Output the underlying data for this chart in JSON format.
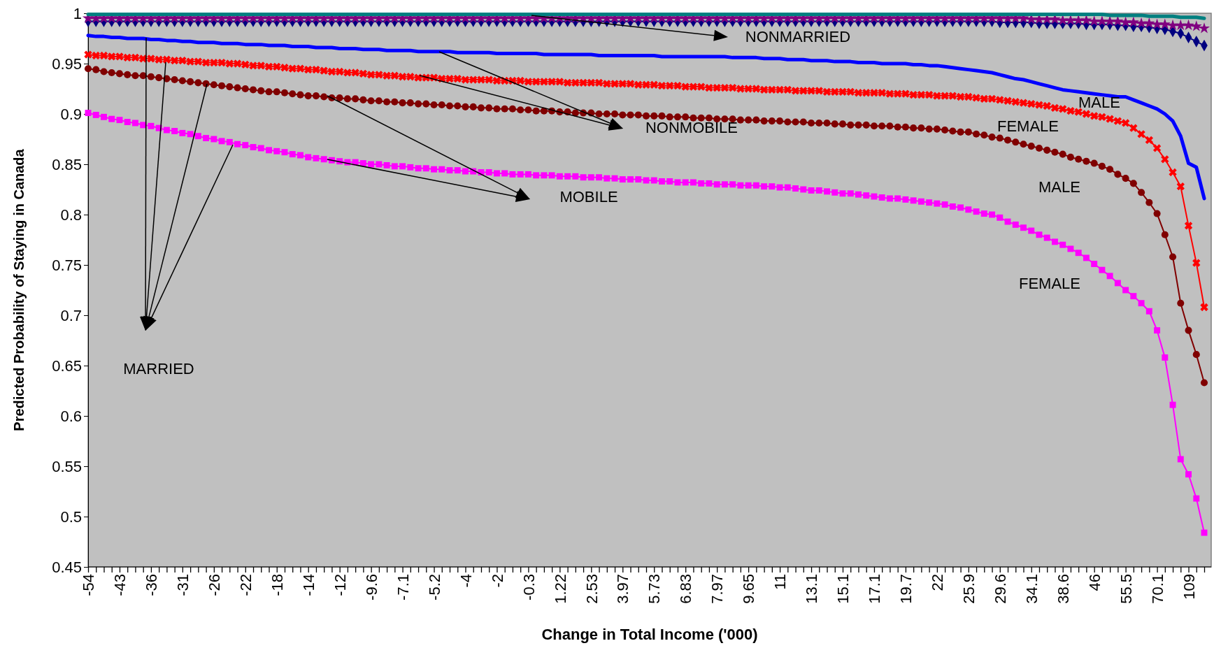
{
  "chart_data": {
    "type": "line",
    "xlabel": "Change in Total Income ('000)",
    "ylabel": "Predicted Probability of Staying in Canada",
    "categories": [
      "-54",
      null,
      null,
      null,
      "-43",
      null,
      null,
      null,
      "-36",
      null,
      null,
      null,
      "-31",
      null,
      null,
      null,
      "-26",
      null,
      null,
      null,
      "-22",
      null,
      null,
      null,
      "-18",
      null,
      null,
      null,
      "-14",
      null,
      null,
      null,
      "-12",
      null,
      null,
      null,
      "-9.6",
      null,
      null,
      null,
      "-7.1",
      null,
      null,
      null,
      "-5.2",
      null,
      null,
      null,
      "-4",
      null,
      null,
      null,
      "-2",
      null,
      null,
      null,
      "-0.3",
      null,
      null,
      null,
      "1.22",
      null,
      null,
      null,
      "2.53",
      null,
      null,
      null,
      "3.97",
      null,
      null,
      null,
      "5.73",
      null,
      null,
      null,
      "6.83",
      null,
      null,
      null,
      "7.97",
      null,
      null,
      null,
      "9.65",
      null,
      null,
      null,
      "11",
      null,
      null,
      null,
      "13.1",
      null,
      null,
      null,
      "15.1",
      null,
      null,
      null,
      "17.1",
      null,
      null,
      null,
      "19.7",
      null,
      null,
      null,
      "22",
      null,
      null,
      null,
      "25.9",
      null,
      null,
      null,
      "29.6",
      null,
      null,
      null,
      "34.1",
      null,
      null,
      null,
      "38.6",
      null,
      null,
      null,
      "46",
      null,
      null,
      null,
      "55.5",
      null,
      null,
      null,
      "70.1",
      null,
      null,
      null,
      "109",
      null,
      null
    ],
    "ylim": [
      0.45,
      1
    ],
    "yticks": [
      0.45,
      0.5,
      0.55,
      0.6,
      0.65,
      0.7,
      0.75,
      0.8,
      0.85,
      0.9,
      0.95,
      1
    ],
    "grid": false,
    "line_style": "solid",
    "series": [
      {
        "color": "#ff00ff",
        "marker": "square",
        "values": [
          0.901,
          0.899,
          0.897,
          0.895,
          0.894,
          0.892,
          0.891,
          0.889,
          0.888,
          0.886,
          0.884,
          0.883,
          0.881,
          0.88,
          0.878,
          0.876,
          0.875,
          0.873,
          0.872,
          0.87,
          0.869,
          0.867,
          0.866,
          0.864,
          0.863,
          0.862,
          0.86,
          0.859,
          0.857,
          0.856,
          0.855,
          0.854,
          0.853,
          0.852,
          0.852,
          0.851,
          0.85,
          0.85,
          0.849,
          0.848,
          0.848,
          0.847,
          0.846,
          0.846,
          0.845,
          0.845,
          0.844,
          0.844,
          0.843,
          0.843,
          0.842,
          0.842,
          0.841,
          0.841,
          0.84,
          0.84,
          0.84,
          0.839,
          0.839,
          0.839,
          0.838,
          0.838,
          0.838,
          0.837,
          0.837,
          0.837,
          0.836,
          0.836,
          0.835,
          0.835,
          0.835,
          0.834,
          0.834,
          0.833,
          0.833,
          0.832,
          0.832,
          0.832,
          0.831,
          0.831,
          0.83,
          0.83,
          0.83,
          0.829,
          0.829,
          0.829,
          0.828,
          0.828,
          0.827,
          0.827,
          0.826,
          0.825,
          0.824,
          0.824,
          0.823,
          0.822,
          0.821,
          0.821,
          0.82,
          0.819,
          0.818,
          0.817,
          0.816,
          0.816,
          0.815,
          0.814,
          0.813,
          0.812,
          0.811,
          0.81,
          0.808,
          0.807,
          0.805,
          0.803,
          0.801,
          0.8,
          0.797,
          0.793,
          0.79,
          0.787,
          0.784,
          0.78,
          0.777,
          0.773,
          0.77,
          0.766,
          0.762,
          0.757,
          0.751,
          0.745,
          0.739,
          0.732,
          0.725,
          0.719,
          0.712,
          0.704,
          0.685,
          0.658,
          0.611,
          0.557,
          0.542,
          0.518,
          0.484
        ]
      },
      {
        "color": "#800000",
        "marker": "circle",
        "values": [
          0.945,
          0.944,
          0.942,
          0.941,
          0.94,
          0.939,
          0.938,
          0.938,
          0.937,
          0.936,
          0.935,
          0.934,
          0.933,
          0.932,
          0.931,
          0.93,
          0.929,
          0.928,
          0.927,
          0.926,
          0.925,
          0.924,
          0.923,
          0.922,
          0.922,
          0.921,
          0.92,
          0.919,
          0.918,
          0.918,
          0.917,
          0.916,
          0.916,
          0.915,
          0.915,
          0.914,
          0.913,
          0.913,
          0.912,
          0.912,
          0.911,
          0.911,
          0.91,
          0.91,
          0.909,
          0.909,
          0.908,
          0.908,
          0.907,
          0.907,
          0.906,
          0.906,
          0.905,
          0.905,
          0.905,
          0.904,
          0.904,
          0.903,
          0.903,
          0.903,
          0.902,
          0.902,
          0.901,
          0.901,
          0.901,
          0.9,
          0.9,
          0.9,
          0.899,
          0.899,
          0.899,
          0.898,
          0.898,
          0.898,
          0.897,
          0.897,
          0.897,
          0.896,
          0.896,
          0.896,
          0.895,
          0.895,
          0.895,
          0.894,
          0.894,
          0.894,
          0.893,
          0.893,
          0.893,
          0.892,
          0.892,
          0.892,
          0.891,
          0.891,
          0.891,
          0.89,
          0.89,
          0.889,
          0.889,
          0.889,
          0.888,
          0.888,
          0.888,
          0.887,
          0.887,
          0.886,
          0.886,
          0.885,
          0.885,
          0.884,
          0.883,
          0.882,
          0.882,
          0.88,
          0.879,
          0.877,
          0.876,
          0.874,
          0.872,
          0.87,
          0.868,
          0.866,
          0.864,
          0.862,
          0.86,
          0.857,
          0.855,
          0.853,
          0.851,
          0.848,
          0.845,
          0.84,
          0.836,
          0.831,
          0.822,
          0.812,
          0.801,
          0.78,
          0.758,
          0.712,
          0.685,
          0.661,
          0.633
        ]
      },
      {
        "color": "#ff0000",
        "marker": "cross",
        "values": [
          0.959,
          0.958,
          0.958,
          0.957,
          0.957,
          0.956,
          0.956,
          0.955,
          0.955,
          0.954,
          0.954,
          0.953,
          0.953,
          0.952,
          0.952,
          0.951,
          0.951,
          0.951,
          0.95,
          0.95,
          0.949,
          0.948,
          0.948,
          0.947,
          0.947,
          0.946,
          0.945,
          0.945,
          0.944,
          0.944,
          0.943,
          0.942,
          0.942,
          0.941,
          0.941,
          0.94,
          0.939,
          0.939,
          0.938,
          0.938,
          0.937,
          0.937,
          0.936,
          0.936,
          0.936,
          0.935,
          0.935,
          0.935,
          0.934,
          0.934,
          0.934,
          0.934,
          0.933,
          0.933,
          0.933,
          0.933,
          0.932,
          0.932,
          0.932,
          0.932,
          0.932,
          0.931,
          0.931,
          0.931,
          0.931,
          0.931,
          0.93,
          0.93,
          0.93,
          0.93,
          0.929,
          0.929,
          0.929,
          0.928,
          0.928,
          0.928,
          0.927,
          0.927,
          0.927,
          0.926,
          0.926,
          0.926,
          0.926,
          0.925,
          0.925,
          0.925,
          0.924,
          0.924,
          0.924,
          0.924,
          0.923,
          0.923,
          0.923,
          0.923,
          0.922,
          0.922,
          0.922,
          0.922,
          0.921,
          0.921,
          0.921,
          0.921,
          0.92,
          0.92,
          0.92,
          0.919,
          0.919,
          0.919,
          0.918,
          0.918,
          0.918,
          0.917,
          0.917,
          0.916,
          0.915,
          0.915,
          0.914,
          0.913,
          0.912,
          0.911,
          0.91,
          0.909,
          0.908,
          0.906,
          0.905,
          0.903,
          0.902,
          0.9,
          0.898,
          0.897,
          0.895,
          0.893,
          0.891,
          0.886,
          0.88,
          0.874,
          0.866,
          0.855,
          0.842,
          0.828,
          0.789,
          0.752,
          0.708
        ]
      },
      {
        "color": "#0000ff",
        "marker": "none",
        "values": [
          0.978,
          0.977,
          0.977,
          0.976,
          0.976,
          0.975,
          0.975,
          0.975,
          0.974,
          0.974,
          0.973,
          0.973,
          0.972,
          0.972,
          0.971,
          0.971,
          0.971,
          0.97,
          0.97,
          0.97,
          0.969,
          0.969,
          0.969,
          0.968,
          0.968,
          0.968,
          0.967,
          0.967,
          0.967,
          0.966,
          0.966,
          0.966,
          0.965,
          0.965,
          0.965,
          0.964,
          0.964,
          0.964,
          0.963,
          0.963,
          0.963,
          0.963,
          0.962,
          0.962,
          0.962,
          0.962,
          0.962,
          0.961,
          0.961,
          0.961,
          0.961,
          0.961,
          0.96,
          0.96,
          0.96,
          0.96,
          0.96,
          0.96,
          0.959,
          0.959,
          0.959,
          0.959,
          0.959,
          0.959,
          0.959,
          0.958,
          0.958,
          0.958,
          0.958,
          0.958,
          0.958,
          0.958,
          0.958,
          0.957,
          0.957,
          0.957,
          0.957,
          0.957,
          0.957,
          0.957,
          0.957,
          0.957,
          0.956,
          0.956,
          0.956,
          0.956,
          0.955,
          0.955,
          0.955,
          0.954,
          0.954,
          0.954,
          0.953,
          0.953,
          0.953,
          0.952,
          0.952,
          0.952,
          0.951,
          0.951,
          0.951,
          0.95,
          0.95,
          0.95,
          0.95,
          0.949,
          0.949,
          0.948,
          0.948,
          0.947,
          0.946,
          0.945,
          0.944,
          0.943,
          0.942,
          0.941,
          0.939,
          0.937,
          0.935,
          0.934,
          0.932,
          0.93,
          0.928,
          0.926,
          0.924,
          0.923,
          0.922,
          0.921,
          0.92,
          0.919,
          0.918,
          0.917,
          0.917,
          0.914,
          0.911,
          0.908,
          0.905,
          0.9,
          0.893,
          0.878,
          0.851,
          0.847,
          0.816
        ]
      },
      {
        "color": "#000080",
        "marker": "diamond",
        "values": [
          0.992,
          0.992,
          0.992,
          0.992,
          0.992,
          0.992,
          0.992,
          0.992,
          0.992,
          0.992,
          0.992,
          0.992,
          0.992,
          0.992,
          0.992,
          0.992,
          0.992,
          0.992,
          0.992,
          0.992,
          0.992,
          0.992,
          0.992,
          0.992,
          0.992,
          0.992,
          0.992,
          0.992,
          0.992,
          0.992,
          0.992,
          0.992,
          0.992,
          0.992,
          0.992,
          0.992,
          0.992,
          0.992,
          0.992,
          0.992,
          0.992,
          0.992,
          0.992,
          0.992,
          0.992,
          0.992,
          0.992,
          0.992,
          0.992,
          0.992,
          0.992,
          0.992,
          0.992,
          0.992,
          0.992,
          0.992,
          0.992,
          0.992,
          0.992,
          0.992,
          0.992,
          0.992,
          0.992,
          0.992,
          0.992,
          0.992,
          0.992,
          0.992,
          0.992,
          0.992,
          0.992,
          0.992,
          0.992,
          0.992,
          0.992,
          0.992,
          0.992,
          0.992,
          0.992,
          0.992,
          0.992,
          0.992,
          0.992,
          0.992,
          0.992,
          0.992,
          0.992,
          0.992,
          0.992,
          0.992,
          0.992,
          0.992,
          0.992,
          0.992,
          0.992,
          0.992,
          0.992,
          0.992,
          0.992,
          0.992,
          0.992,
          0.992,
          0.992,
          0.992,
          0.992,
          0.992,
          0.992,
          0.992,
          0.992,
          0.992,
          0.992,
          0.992,
          0.992,
          0.992,
          0.992,
          0.992,
          0.991,
          0.991,
          0.991,
          0.991,
          0.991,
          0.99,
          0.99,
          0.99,
          0.99,
          0.99,
          0.99,
          0.989,
          0.989,
          0.989,
          0.989,
          0.988,
          0.988,
          0.987,
          0.987,
          0.986,
          0.985,
          0.984,
          0.982,
          0.98,
          0.976,
          0.972,
          0.968
        ]
      },
      {
        "color": "#800080",
        "marker": "star",
        "values": [
          0.995,
          0.995,
          0.995,
          0.995,
          0.995,
          0.995,
          0.995,
          0.995,
          0.995,
          0.995,
          0.995,
          0.995,
          0.995,
          0.995,
          0.995,
          0.995,
          0.995,
          0.995,
          0.995,
          0.995,
          0.995,
          0.995,
          0.995,
          0.995,
          0.995,
          0.995,
          0.995,
          0.995,
          0.995,
          0.995,
          0.995,
          0.995,
          0.995,
          0.995,
          0.995,
          0.995,
          0.995,
          0.995,
          0.995,
          0.995,
          0.995,
          0.995,
          0.995,
          0.995,
          0.995,
          0.995,
          0.995,
          0.995,
          0.995,
          0.995,
          0.995,
          0.995,
          0.995,
          0.995,
          0.995,
          0.995,
          0.995,
          0.995,
          0.995,
          0.995,
          0.995,
          0.995,
          0.995,
          0.995,
          0.995,
          0.995,
          0.995,
          0.995,
          0.995,
          0.995,
          0.995,
          0.995,
          0.995,
          0.995,
          0.995,
          0.995,
          0.995,
          0.995,
          0.995,
          0.995,
          0.995,
          0.995,
          0.995,
          0.995,
          0.995,
          0.995,
          0.995,
          0.995,
          0.995,
          0.995,
          0.995,
          0.995,
          0.995,
          0.995,
          0.995,
          0.995,
          0.995,
          0.995,
          0.995,
          0.995,
          0.995,
          0.995,
          0.995,
          0.995,
          0.995,
          0.995,
          0.995,
          0.995,
          0.995,
          0.995,
          0.995,
          0.995,
          0.995,
          0.995,
          0.995,
          0.995,
          0.995,
          0.995,
          0.995,
          0.995,
          0.994,
          0.994,
          0.994,
          0.994,
          0.993,
          0.993,
          0.993,
          0.993,
          0.992,
          0.992,
          0.992,
          0.992,
          0.991,
          0.991,
          0.99,
          0.99,
          0.989,
          0.989,
          0.988,
          0.988,
          0.988,
          0.987,
          0.985
        ]
      },
      {
        "color": "#008080",
        "marker": "none",
        "values": [
          0.999,
          0.999,
          0.999,
          0.999,
          0.999,
          0.999,
          0.999,
          0.999,
          0.999,
          0.999,
          0.999,
          0.999,
          0.999,
          0.999,
          0.999,
          0.999,
          0.999,
          0.999,
          0.999,
          0.999,
          0.999,
          0.999,
          0.999,
          0.999,
          0.999,
          0.999,
          0.999,
          0.999,
          0.999,
          0.999,
          0.999,
          0.999,
          0.999,
          0.999,
          0.999,
          0.999,
          0.999,
          0.999,
          0.999,
          0.999,
          0.999,
          0.999,
          0.999,
          0.999,
          0.999,
          0.999,
          0.999,
          0.999,
          0.999,
          0.999,
          0.999,
          0.999,
          0.999,
          0.999,
          0.999,
          0.999,
          0.999,
          0.999,
          0.999,
          0.999,
          0.999,
          0.999,
          0.999,
          0.999,
          0.999,
          0.999,
          0.999,
          0.999,
          0.999,
          0.999,
          0.999,
          0.999,
          0.999,
          0.999,
          0.999,
          0.999,
          0.999,
          0.999,
          0.999,
          0.999,
          0.999,
          0.999,
          0.999,
          0.999,
          0.999,
          0.999,
          0.999,
          0.999,
          0.999,
          0.999,
          0.999,
          0.999,
          0.999,
          0.999,
          0.999,
          0.999,
          0.999,
          0.999,
          0.999,
          0.999,
          0.999,
          0.999,
          0.999,
          0.999,
          0.999,
          0.999,
          0.999,
          0.999,
          0.999,
          0.999,
          0.999,
          0.999,
          0.999,
          0.999,
          0.999,
          0.999,
          0.999,
          0.999,
          0.999,
          0.999,
          0.999,
          0.999,
          0.999,
          0.999,
          0.999,
          0.999,
          0.999,
          0.999,
          0.999,
          0.999,
          0.998,
          0.998,
          0.998,
          0.998,
          0.998,
          0.997,
          0.997,
          0.997,
          0.997,
          0.996,
          0.996,
          0.996,
          0.995
        ]
      }
    ],
    "annotations": [
      "NONMARRIED",
      "NONMOBILE",
      "MOBILE",
      "MARRIED",
      "MALE",
      "FEMALE",
      "MALE",
      "FEMALE"
    ]
  }
}
